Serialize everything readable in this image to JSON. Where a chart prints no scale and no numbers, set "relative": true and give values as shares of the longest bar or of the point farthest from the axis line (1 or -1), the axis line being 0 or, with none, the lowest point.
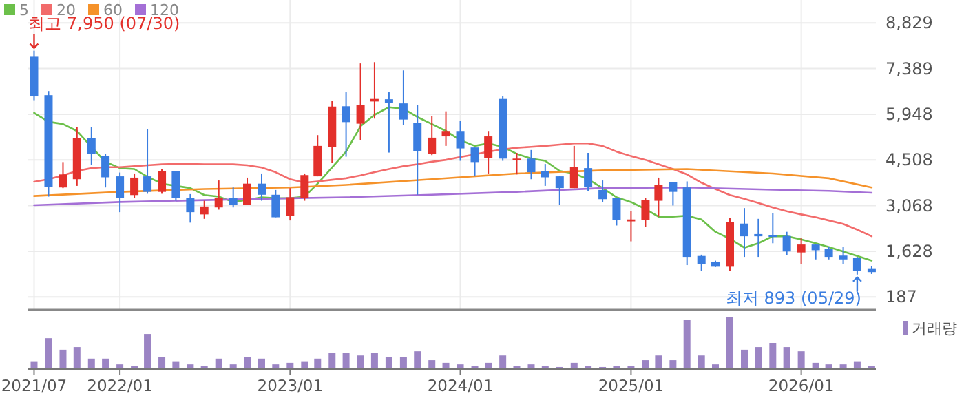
{
  "chart_data": [
    {
      "type": "candlestick",
      "legend": "top left",
      "grid": true,
      "tick_labels": "y",
      "x": [
        "2021-07",
        "2021-08",
        "2021-09",
        "2021-10",
        "2021-11",
        "2021-12",
        "2022-01",
        "2022-02",
        "2022-03",
        "2022-04",
        "2022-05",
        "2022-06",
        "2022-07",
        "2022-08",
        "2022-09",
        "2022-10",
        "2022-11",
        "2022-12",
        "2023-01",
        "2023-02",
        "2023-03",
        "2023-04",
        "2023-05",
        "2023-06",
        "2023-07",
        "2023-08",
        "2023-09",
        "2023-10",
        "2023-11",
        "2023-12",
        "2024-01",
        "2024-02",
        "2024-03",
        "2024-04",
        "2024-05",
        "2024-06",
        "2024-07",
        "2024-08",
        "2024-09",
        "2024-10",
        "2024-11",
        "2024-12",
        "2025-01",
        "2025-02",
        "2025-03",
        "2025-04",
        "2025-05",
        "2025-06",
        "2025-07",
        "2025-08",
        "2025-09",
        "2025-10",
        "2025-11",
        "2025-12",
        "2026-01",
        "2026-02",
        "2026-03",
        "2026-04",
        "2026-05",
        "2026-06"
      ],
      "ohlc": [
        [
          7760,
          7950,
          6390,
          6510
        ],
        [
          6550,
          6680,
          3350,
          3660
        ],
        [
          3640,
          4440,
          3620,
          4050
        ],
        [
          3900,
          5550,
          3690,
          5200
        ],
        [
          5200,
          5550,
          4340,
          4700
        ],
        [
          4630,
          4690,
          3640,
          3960
        ],
        [
          3990,
          4110,
          2860,
          3300
        ],
        [
          3400,
          4080,
          3300,
          3950
        ],
        [
          3990,
          5470,
          3440,
          3500
        ],
        [
          3500,
          4210,
          3440,
          4150
        ],
        [
          4160,
          4160,
          3220,
          3300
        ],
        [
          3300,
          3430,
          2530,
          2860
        ],
        [
          2790,
          3220,
          2650,
          3040
        ],
        [
          3010,
          3860,
          2940,
          3300
        ],
        [
          3300,
          3640,
          3010,
          3090
        ],
        [
          3090,
          3950,
          3090,
          3760
        ],
        [
          3760,
          4080,
          3220,
          3410
        ],
        [
          3410,
          3560,
          2700,
          2700
        ],
        [
          2750,
          3620,
          2600,
          3330
        ],
        [
          3300,
          4080,
          3220,
          4030
        ],
        [
          3990,
          5290,
          3990,
          4950
        ],
        [
          4920,
          6360,
          4410,
          6190
        ],
        [
          6200,
          6640,
          4610,
          5700
        ],
        [
          5650,
          7550,
          5130,
          6250
        ],
        [
          6350,
          7590,
          5810,
          6430
        ],
        [
          6420,
          6640,
          4740,
          6300
        ],
        [
          6290,
          7330,
          5610,
          5780
        ],
        [
          5680,
          6250,
          3410,
          4790
        ],
        [
          4690,
          5900,
          4660,
          5210
        ],
        [
          5250,
          6040,
          4950,
          5420
        ],
        [
          5420,
          5730,
          4480,
          4870
        ],
        [
          4900,
          4900,
          3990,
          4440
        ],
        [
          4570,
          5420,
          4080,
          5250
        ],
        [
          6430,
          6510,
          4480,
          4550
        ],
        [
          4520,
          4730,
          4050,
          4550
        ],
        [
          4550,
          4820,
          3900,
          4120
        ],
        [
          4160,
          4380,
          3690,
          3960
        ],
        [
          3990,
          3990,
          3080,
          3620
        ],
        [
          3620,
          4950,
          3620,
          4290
        ],
        [
          4250,
          4730,
          3530,
          3660
        ],
        [
          3560,
          3860,
          3180,
          3270
        ],
        [
          3300,
          3300,
          2440,
          2620
        ],
        [
          2570,
          2890,
          1940,
          2630
        ],
        [
          2620,
          3300,
          2400,
          3250
        ],
        [
          3220,
          3950,
          2720,
          3720
        ],
        [
          3800,
          3800,
          3070,
          3500
        ],
        [
          3640,
          3830,
          1190,
          1450
        ],
        [
          1480,
          1520,
          1010,
          1230
        ],
        [
          1300,
          1330,
          1130,
          1140
        ],
        [
          1140,
          2680,
          1010,
          2550
        ],
        [
          2500,
          2990,
          1450,
          2100
        ],
        [
          2170,
          2650,
          1450,
          2100
        ],
        [
          2140,
          2820,
          1880,
          2080
        ],
        [
          2110,
          2240,
          1500,
          1620
        ],
        [
          1590,
          2050,
          1230,
          1840
        ],
        [
          1840,
          1840,
          1370,
          1660
        ],
        [
          1710,
          1760,
          1370,
          1450
        ],
        [
          1490,
          1760,
          1230,
          1370
        ],
        [
          1420,
          1450,
          893,
          1010
        ],
        [
          1090,
          1160,
          910,
          970
        ]
      ],
      "colors": [
        "#3a7de0",
        "#3a7de0",
        "#e3302b",
        "#e3302b",
        "#3a7de0",
        "#3a7de0",
        "#3a7de0",
        "#e3302b",
        "#3a7de0",
        "#e3302b",
        "#3a7de0",
        "#3a7de0",
        "#e3302b",
        "#e3302b",
        "#3a7de0",
        "#e3302b",
        "#3a7de0",
        "#3a7de0",
        "#e3302b",
        "#e3302b",
        "#e3302b",
        "#e3302b",
        "#3a7de0",
        "#e3302b",
        "#e3302b",
        "#3a7de0",
        "#3a7de0",
        "#3a7de0",
        "#e3302b",
        "#e3302b",
        "#3a7de0",
        "#3a7de0",
        "#e3302b",
        "#3a7de0",
        "#e3302b",
        "#3a7de0",
        "#3a7de0",
        "#3a7de0",
        "#e3302b",
        "#3a7de0",
        "#3a7de0",
        "#3a7de0",
        "#e3302b",
        "#e3302b",
        "#e3302b",
        "#3a7de0",
        "#3a7de0",
        "#3a7de0",
        "#3a7de0",
        "#e3302b",
        "#3a7de0",
        "#3a7de0",
        "#3a7de0",
        "#3a7de0",
        "#e3302b",
        "#3a7de0",
        "#3a7de0",
        "#3a7de0",
        "#3a7de0",
        "#3a7de0"
      ],
      "series": [
        {
          "name": "5",
          "type": "line",
          "color": "#6cc04a",
          "values": [
            5990,
            5710,
            5640,
            5420,
            4920,
            4450,
            4250,
            4220,
            3980,
            3760,
            3690,
            3620,
            3400,
            3350,
            3180,
            3250,
            3330,
            3300,
            3300,
            3350,
            3760,
            4270,
            4770,
            5570,
            5930,
            6170,
            6120,
            5860,
            5640,
            5420,
            5130,
            4950,
            5030,
            4920,
            4700,
            4550,
            4480,
            4160,
            4080,
            3900,
            3620,
            3330,
            3180,
            2960,
            2720,
            2720,
            2750,
            2630,
            2240,
            2020,
            1740,
            1880,
            2100,
            2100,
            2000,
            1880,
            1760,
            1620,
            1480,
            1330
          ]
        },
        {
          "name": "20",
          "type": "line",
          "color": "#f26b6b",
          "values": [
            3820,
            3900,
            4020,
            4160,
            4250,
            4280,
            4280,
            4310,
            4340,
            4370,
            4380,
            4380,
            4370,
            4370,
            4370,
            4340,
            4270,
            4120,
            3900,
            3790,
            3830,
            3880,
            3930,
            4020,
            4120,
            4220,
            4310,
            4370,
            4450,
            4510,
            4600,
            4680,
            4770,
            4840,
            4890,
            4920,
            4950,
            4990,
            5030,
            5030,
            4950,
            4770,
            4630,
            4510,
            4370,
            4220,
            4050,
            3790,
            3590,
            3400,
            3280,
            3150,
            3010,
            2890,
            2790,
            2700,
            2600,
            2490,
            2310,
            2100
          ]
        },
        {
          "name": "60",
          "type": "line",
          "color": "#f5922a",
          "x": [
            "2021-07",
            "2022-01",
            "2022-07",
            "2023-01",
            "2023-05",
            "2023-11",
            "2024-05",
            "2024-11",
            "2025-05",
            "2025-11",
            "2026-03",
            "2026-06"
          ],
          "values": [
            3370,
            3500,
            3590,
            3640,
            3720,
            3900,
            4080,
            4180,
            4220,
            4080,
            3930,
            3640
          ]
        },
        {
          "name": "120",
          "type": "line",
          "color": "#a46fd6",
          "x": [
            "2021-07",
            "2022-01",
            "2022-07",
            "2023-01",
            "2023-05",
            "2023-11",
            "2024-05",
            "2024-11",
            "2025-05",
            "2025-11",
            "2026-03",
            "2026-06"
          ],
          "values": [
            3080,
            3180,
            3240,
            3300,
            3330,
            3410,
            3500,
            3620,
            3640,
            3570,
            3530,
            3470
          ]
        }
      ],
      "xlim": [
        "2021-06-17",
        "2026-06-10"
      ],
      "xticks": [
        {
          "value": "2021-07",
          "label": null
        },
        {
          "value": "2022-01",
          "label": null
        },
        {
          "value": "2023-01",
          "label": null
        },
        {
          "value": "2024-01",
          "label": null
        },
        {
          "value": "2025-01",
          "label": null
        },
        {
          "value": "2026-01",
          "label": null
        }
      ],
      "ylim": [
        -220,
        9550
      ],
      "yticks": [
        187,
        {
          "value": 1628,
          "label": "1,628"
        },
        {
          "value": 3068,
          "label": "3,068"
        },
        {
          "value": 4508,
          "label": "4,508"
        },
        {
          "value": 5948,
          "label": "5,948"
        },
        {
          "value": 7389,
          "label": "7,389"
        },
        {
          "value": 8829,
          "label": "8,829"
        }
      ],
      "annotations": [
        "최고 7,950 (07/30)",
        "최저 893 (05/29)"
      ]
    },
    {
      "type": "bar",
      "relative": true,
      "legend": "top right",
      "x": [
        "2021-07",
        "2021-08",
        "2021-09",
        "2021-10",
        "2021-11",
        "2021-12",
        "2022-01",
        "2022-02",
        "2022-03",
        "2022-04",
        "2022-05",
        "2022-06",
        "2022-07",
        "2022-08",
        "2022-09",
        "2022-10",
        "2022-11",
        "2022-12",
        "2023-01",
        "2023-02",
        "2023-03",
        "2023-04",
        "2023-05",
        "2023-06",
        "2023-07",
        "2023-08",
        "2023-09",
        "2023-10",
        "2023-11",
        "2023-12",
        "2024-01",
        "2024-02",
        "2024-03",
        "2024-04",
        "2024-05",
        "2024-06",
        "2024-07",
        "2024-08",
        "2024-09",
        "2024-10",
        "2024-11",
        "2024-12",
        "2025-01",
        "2025-02",
        "2025-03",
        "2025-04",
        "2025-05",
        "2025-06",
        "2025-07",
        "2025-08",
        "2025-09",
        "2025-10",
        "2025-11",
        "2025-12",
        "2026-01",
        "2026-02",
        "2026-03",
        "2026-04",
        "2026-05",
        "2026-06"
      ],
      "series": [
        {
          "name": "거래량",
          "color": "#9b84c4",
          "values": [
            0.15,
            0.59,
            0.37,
            0.42,
            0.2,
            0.2,
            0.09,
            0.06,
            0.67,
            0.23,
            0.15,
            0.09,
            0.06,
            0.2,
            0.09,
            0.23,
            0.2,
            0.09,
            0.12,
            0.15,
            0.2,
            0.31,
            0.31,
            0.26,
            0.31,
            0.23,
            0.23,
            0.34,
            0.17,
            0.12,
            0.09,
            0.06,
            0.12,
            0.26,
            0.06,
            0.09,
            0.06,
            0.04,
            0.12,
            0.06,
            0.04,
            0.06,
            0.06,
            0.17,
            0.26,
            0.17,
            0.94,
            0.26,
            0.09,
            1,
            0.37,
            0.42,
            0.5,
            0.42,
            0.34,
            0.12,
            0.09,
            0.09,
            0.15,
            0.06
          ]
        }
      ],
      "xlim": [
        "2021-06-17",
        "2026-06-10"
      ],
      "xticks": [
        {
          "value": "2021-07",
          "label": "2021/07"
        },
        {
          "value": "2022-01",
          "label": "2022/01"
        },
        {
          "value": "2023-01",
          "label": "2023/01"
        },
        {
          "value": "2024-01",
          "label": "2024/01"
        },
        {
          "value": "2025-01",
          "label": "2025/01"
        },
        {
          "value": "2026-01",
          "label": "2026/01"
        }
      ]
    }
  ]
}
